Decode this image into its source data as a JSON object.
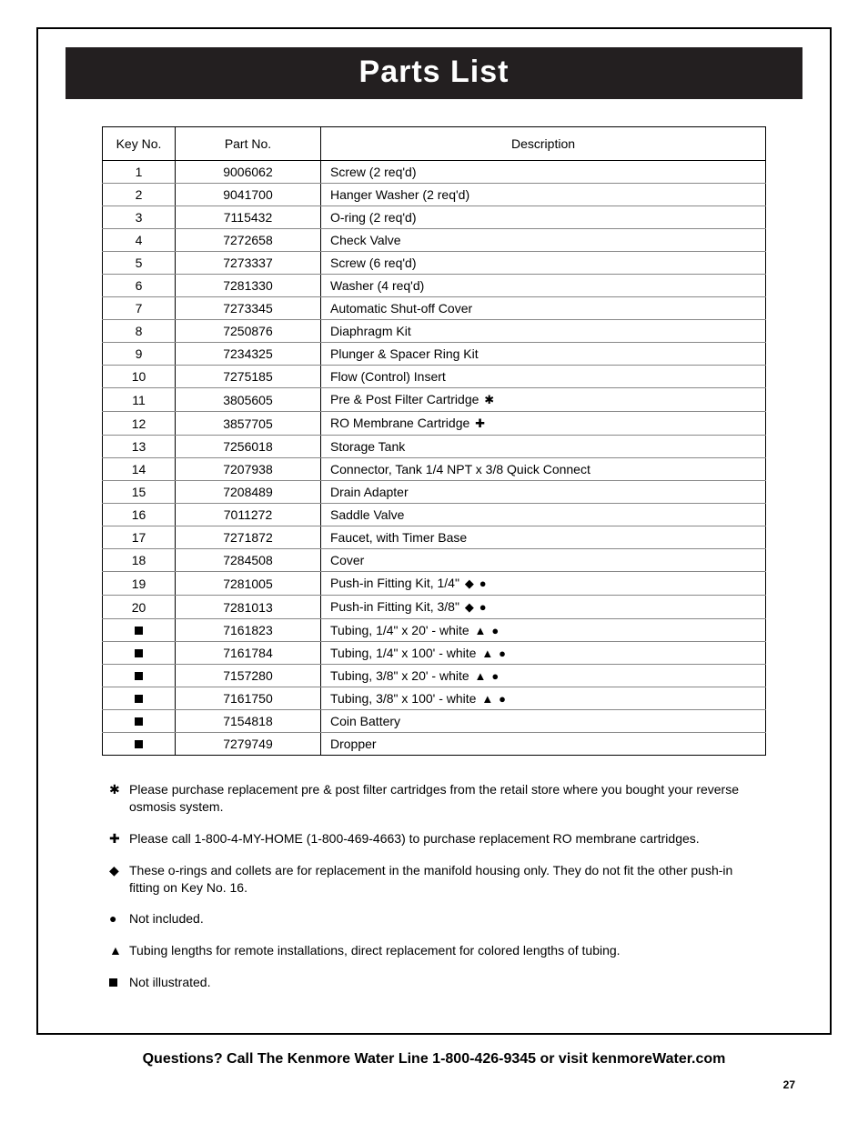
{
  "title": "Parts List",
  "columns": [
    "Key No.",
    "Part No.",
    "Description"
  ],
  "rows": [
    {
      "key": "1",
      "part": "9006062",
      "desc": "Screw (2 req'd)",
      "syms": []
    },
    {
      "key": "2",
      "part": "9041700",
      "desc": "Hanger Washer (2 req'd)",
      "syms": []
    },
    {
      "key": "3",
      "part": "7115432",
      "desc": "O-ring (2 req'd)",
      "syms": []
    },
    {
      "key": "4",
      "part": "7272658",
      "desc": "Check Valve",
      "syms": []
    },
    {
      "key": "5",
      "part": "7273337",
      "desc": "Screw (6 req'd)",
      "syms": []
    },
    {
      "key": "6",
      "part": "7281330",
      "desc": "Washer (4 req'd)",
      "syms": []
    },
    {
      "key": "7",
      "part": "7273345",
      "desc": "Automatic Shut-off Cover",
      "syms": []
    },
    {
      "key": "8",
      "part": "7250876",
      "desc": "Diaphragm Kit",
      "syms": []
    },
    {
      "key": "9",
      "part": "7234325",
      "desc": "Plunger & Spacer Ring Kit",
      "syms": []
    },
    {
      "key": "10",
      "part": "7275185",
      "desc": "Flow (Control) Insert",
      "syms": []
    },
    {
      "key": "11",
      "part": "3805605",
      "desc": "Pre & Post Filter Cartridge",
      "syms": [
        "star"
      ]
    },
    {
      "key": "12",
      "part": "3857705",
      "desc": "RO Membrane Cartridge",
      "syms": [
        "plus"
      ]
    },
    {
      "key": "13",
      "part": "7256018",
      "desc": "Storage Tank",
      "syms": []
    },
    {
      "key": "14",
      "part": "7207938",
      "desc": "Connector, Tank 1/4 NPT x 3/8 Quick Connect",
      "syms": []
    },
    {
      "key": "15",
      "part": "7208489",
      "desc": "Drain Adapter",
      "syms": []
    },
    {
      "key": "16",
      "part": "7011272",
      "desc": "Saddle Valve",
      "syms": []
    },
    {
      "key": "17",
      "part": "7271872",
      "desc": "Faucet, with Timer Base",
      "syms": []
    },
    {
      "key": "18",
      "part": "7284508",
      "desc": "Cover",
      "syms": []
    },
    {
      "key": "19",
      "part": "7281005",
      "desc": "Push-in Fitting Kit, 1/4\"",
      "syms": [
        "diamond",
        "circle"
      ]
    },
    {
      "key": "20",
      "part": "7281013",
      "desc": "Push-in Fitting Kit, 3/8\"",
      "syms": [
        "diamond",
        "circle"
      ]
    },
    {
      "key": "square",
      "part": "7161823",
      "desc": "Tubing, 1/4\" x 20' - white",
      "syms": [
        "triangle",
        "circle"
      ]
    },
    {
      "key": "square",
      "part": "7161784",
      "desc": "Tubing, 1/4\" x 100' - white",
      "syms": [
        "triangle",
        "circle"
      ]
    },
    {
      "key": "square",
      "part": "7157280",
      "desc": "Tubing, 3/8\" x 20' - white",
      "syms": [
        "triangle",
        "circle"
      ]
    },
    {
      "key": "square",
      "part": "7161750",
      "desc": "Tubing, 3/8\" x 100' - white",
      "syms": [
        "triangle",
        "circle"
      ]
    },
    {
      "key": "square",
      "part": "7154818",
      "desc": "Coin Battery",
      "syms": []
    },
    {
      "key": "square",
      "part": "7279749",
      "desc": "Dropper",
      "syms": []
    }
  ],
  "symbols": {
    "star": "✱",
    "plus": "✚",
    "diamond": "◆",
    "circle": "●",
    "triangle": "▲",
    "square": "■"
  },
  "notes": [
    {
      "sym": "star",
      "text": "Please purchase replacement pre & post filter cartridges from the retail store where you bought your reverse osmosis system."
    },
    {
      "sym": "plus",
      "text": "Please call 1-800-4-MY-HOME (1-800-469-4663) to purchase replacement RO membrane cartridges."
    },
    {
      "sym": "diamond",
      "text": "These o-rings and collets are for replacement in the manifold housing only. They do not fit the other push-in fitting on Key No. 16."
    },
    {
      "sym": "circle",
      "text": "Not included."
    },
    {
      "sym": "triangle",
      "text": "Tubing lengths for remote installations, direct replacement for colored lengths of tubing."
    },
    {
      "sym": "square",
      "text": "Not illustrated."
    }
  ],
  "footer": "Questions? Call The Kenmore Water Line 1-800-426-9345 or visit kenmoreWater.com",
  "page_number": "27"
}
